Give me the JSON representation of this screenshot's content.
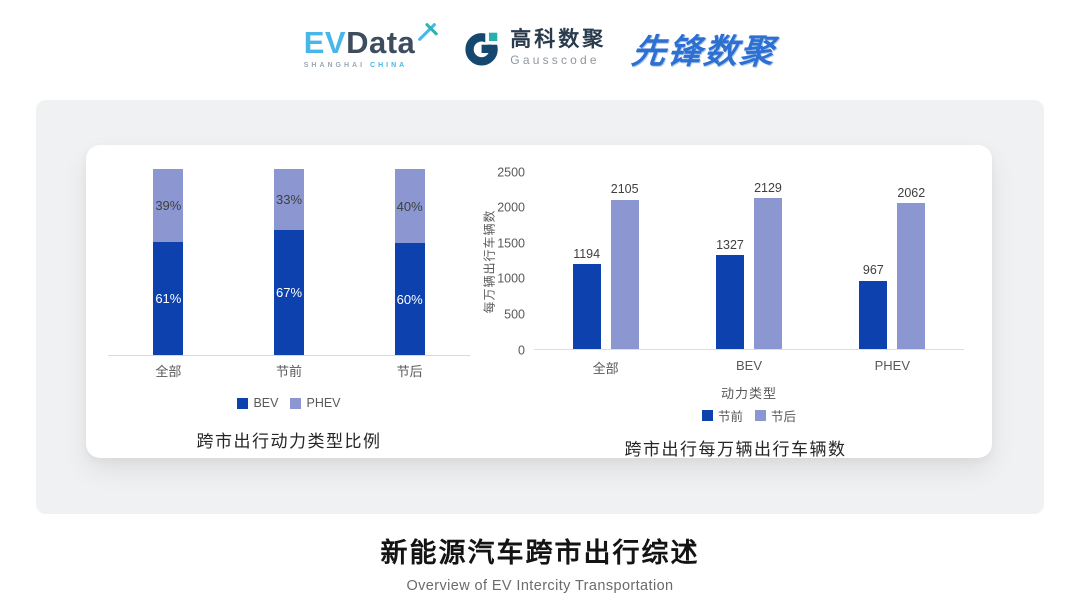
{
  "header": {
    "evdata": {
      "ev": "EV",
      "data": "Data",
      "sub1": "SHANGHAI",
      "sub2": "CHINA"
    },
    "gausscode": {
      "cn": "高科数聚",
      "en": "Gausscode"
    },
    "pioneer": {
      "text": "先锋数聚"
    }
  },
  "colors": {
    "series_dark_blue": "#0d41ad",
    "series_light_blue": "#8c97d1",
    "evdata_blue": "#47b7e9",
    "evdata_dark": "#3e4d5e",
    "gauss_navy": "#14486e",
    "gauss_teal": "#27b0ad",
    "pioneer_blue": "#2e6fd2",
    "axis_line": "#d9d9d9"
  },
  "chart_data": [
    {
      "type": "bar",
      "subtype": "stacked-percent",
      "title": "跨市出行动力类型比例",
      "categories": [
        "全部",
        "节前",
        "节后"
      ],
      "series": [
        {
          "name": "BEV",
          "values": [
            61,
            67,
            60
          ]
        },
        {
          "name": "PHEV",
          "values": [
            39,
            33,
            40
          ]
        }
      ],
      "unit": "%",
      "colors": [
        "#0d41ad",
        "#8c97d1"
      ],
      "legend_position": "bottom",
      "grid": false,
      "ylim": [
        0,
        100
      ]
    },
    {
      "type": "bar",
      "subtype": "grouped",
      "title": "跨市出行每万辆出行车辆数",
      "categories": [
        "全部",
        "BEV",
        "PHEV"
      ],
      "series": [
        {
          "name": "节前",
          "values": [
            1194,
            1327,
            967
          ]
        },
        {
          "name": "节后",
          "values": [
            2105,
            2129,
            2062
          ]
        }
      ],
      "xlabel": "动力类型",
      "ylabel": "每万辆出行车辆数",
      "ylim": [
        0,
        2500
      ],
      "yticks": [
        0,
        500,
        1000,
        1500,
        2000,
        2500
      ],
      "colors": [
        "#0d41ad",
        "#8c97d1"
      ],
      "legend_position": "bottom",
      "grid": false
    }
  ],
  "footer": {
    "title": "新能源汽车跨市出行综述",
    "subtitle": "Overview of EV Intercity Transportation"
  }
}
